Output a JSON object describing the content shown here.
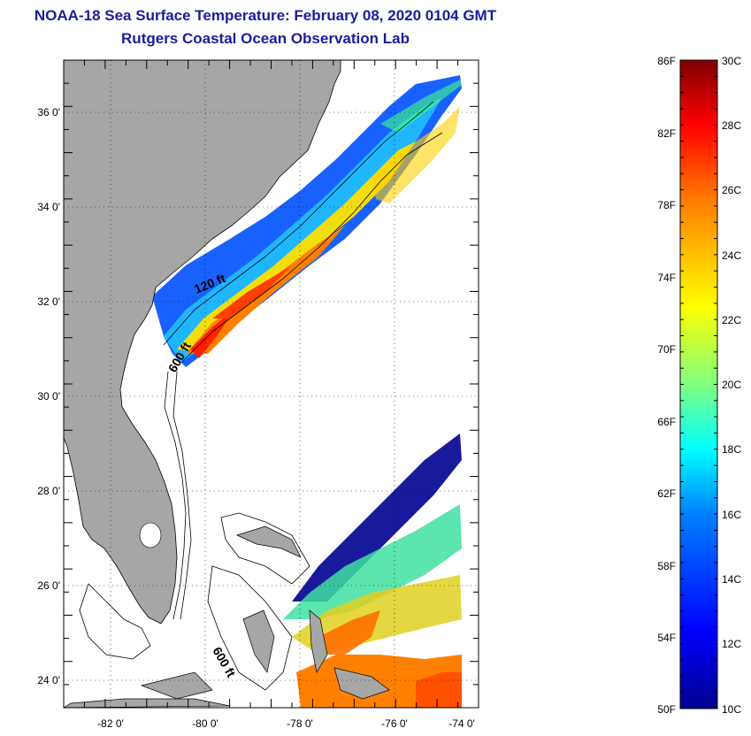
{
  "header": {
    "title": "NOAA-18 Sea Surface Temperature:  February 08, 2020 0104 GMT",
    "subtitle": "Rutgers Coastal Ocean Observation Lab"
  },
  "map": {
    "lat_range": [
      23,
      37
    ],
    "lon_range": [
      -83,
      -73
    ],
    "lat_ticks": [
      {
        "value": 36,
        "label": "36 0'"
      },
      {
        "value": 34,
        "label": "34 0'"
      },
      {
        "value": 32,
        "label": "32 0'"
      },
      {
        "value": 30,
        "label": "30 0'"
      },
      {
        "value": 28,
        "label": "28 0'"
      },
      {
        "value": 26,
        "label": "26 0'"
      },
      {
        "value": 24,
        "label": "24 0'"
      }
    ],
    "lon_ticks": [
      {
        "value": -82,
        "label": "-82 0'"
      },
      {
        "value": -80,
        "label": "-80 0'"
      },
      {
        "value": -78,
        "label": "-78 0'"
      },
      {
        "value": -76,
        "label": "-76 0'"
      },
      {
        "value": -74,
        "label": "-74 0'"
      }
    ],
    "contour_labels": [
      "120 ft",
      "600 ft",
      "600 ft"
    ],
    "grid": "dotted",
    "land_color": "#a6a6a6"
  },
  "colorbar": {
    "f_labels": [
      "86F",
      "82F",
      "78F",
      "74F",
      "70F",
      "66F",
      "62F",
      "58F",
      "54F",
      "50F"
    ],
    "c_labels": [
      "30C",
      "28C",
      "26C",
      "24C",
      "22C",
      "20C",
      "18C",
      "16C",
      "14C",
      "12C",
      "10C"
    ],
    "colors": [
      "#00008f",
      "#0000ff",
      "#00bfff",
      "#40ffbf",
      "#c0ff40",
      "#ffff00",
      "#ff8000",
      "#ff0000",
      "#800000"
    ]
  }
}
